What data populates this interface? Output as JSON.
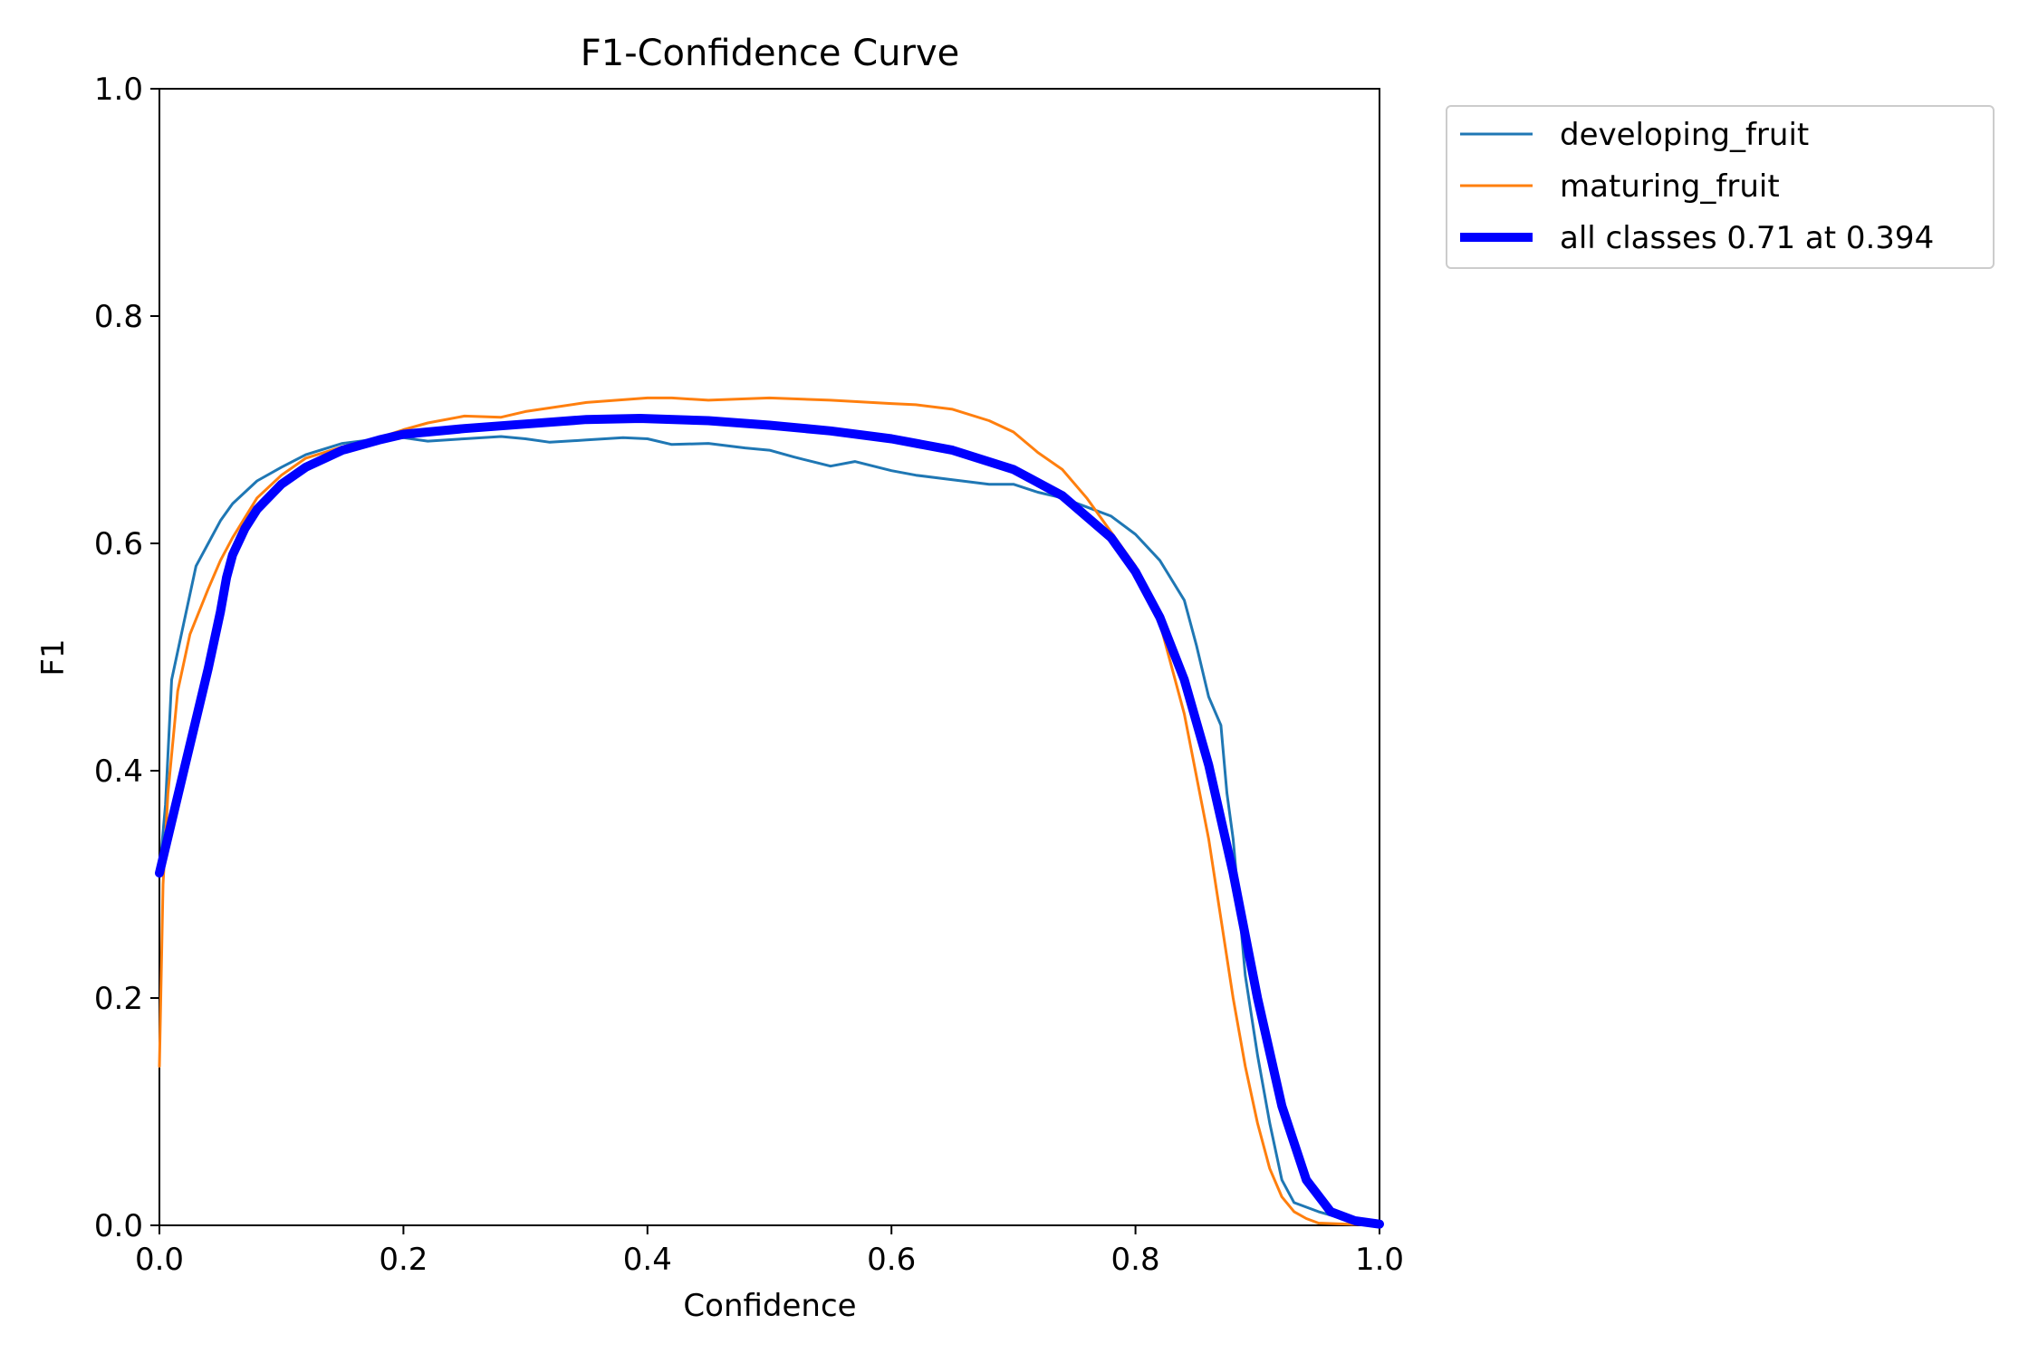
{
  "chart_data": {
    "type": "line",
    "title": "F1-Confidence Curve",
    "xlabel": "Confidence",
    "ylabel": "F1",
    "xlim": [
      0.0,
      1.0
    ],
    "ylim": [
      0.0,
      1.0
    ],
    "xticks": [
      "0.0",
      "0.2",
      "0.4",
      "0.6",
      "0.8",
      "1.0"
    ],
    "yticks": [
      "0.0",
      "0.2",
      "0.4",
      "0.6",
      "0.8",
      "1.0"
    ],
    "grid": false,
    "legend_position": "outside-top-right",
    "series": [
      {
        "name": "developing_fruit",
        "color": "#1f77b4",
        "style": "thin",
        "x": [
          0.0,
          0.005,
          0.01,
          0.02,
          0.03,
          0.04,
          0.05,
          0.06,
          0.08,
          0.1,
          0.12,
          0.15,
          0.18,
          0.2,
          0.22,
          0.25,
          0.28,
          0.3,
          0.32,
          0.35,
          0.38,
          0.4,
          0.42,
          0.45,
          0.48,
          0.5,
          0.52,
          0.55,
          0.57,
          0.6,
          0.62,
          0.65,
          0.68,
          0.7,
          0.72,
          0.74,
          0.76,
          0.78,
          0.8,
          0.82,
          0.84,
          0.85,
          0.86,
          0.87,
          0.875,
          0.88,
          0.885,
          0.89,
          0.9,
          0.91,
          0.92,
          0.93,
          0.95,
          0.97,
          1.0
        ],
        "y": [
          0.31,
          0.37,
          0.48,
          0.53,
          0.58,
          0.6,
          0.62,
          0.635,
          0.655,
          0.667,
          0.678,
          0.688,
          0.692,
          0.693,
          0.69,
          0.692,
          0.694,
          0.692,
          0.689,
          0.691,
          0.693,
          0.692,
          0.687,
          0.688,
          0.684,
          0.682,
          0.676,
          0.668,
          0.672,
          0.664,
          0.66,
          0.656,
          0.652,
          0.652,
          0.645,
          0.64,
          0.632,
          0.624,
          0.608,
          0.585,
          0.55,
          0.51,
          0.465,
          0.44,
          0.38,
          0.34,
          0.28,
          0.22,
          0.15,
          0.09,
          0.04,
          0.02,
          0.012,
          0.006,
          0.0
        ]
      },
      {
        "name": "maturing_fruit",
        "color": "#ff7f0e",
        "style": "thin",
        "x": [
          0.0,
          0.003,
          0.007,
          0.015,
          0.025,
          0.04,
          0.05,
          0.06,
          0.08,
          0.1,
          0.12,
          0.15,
          0.18,
          0.2,
          0.22,
          0.25,
          0.28,
          0.3,
          0.35,
          0.4,
          0.42,
          0.45,
          0.5,
          0.55,
          0.6,
          0.62,
          0.65,
          0.68,
          0.7,
          0.72,
          0.74,
          0.76,
          0.78,
          0.8,
          0.82,
          0.84,
          0.86,
          0.87,
          0.88,
          0.89,
          0.9,
          0.91,
          0.92,
          0.93,
          0.94,
          0.95,
          1.0
        ],
        "y": [
          0.14,
          0.3,
          0.38,
          0.47,
          0.52,
          0.56,
          0.585,
          0.605,
          0.64,
          0.66,
          0.675,
          0.685,
          0.693,
          0.7,
          0.706,
          0.712,
          0.711,
          0.716,
          0.724,
          0.728,
          0.728,
          0.726,
          0.728,
          0.726,
          0.723,
          0.722,
          0.718,
          0.708,
          0.698,
          0.68,
          0.665,
          0.64,
          0.61,
          0.58,
          0.53,
          0.45,
          0.34,
          0.27,
          0.2,
          0.14,
          0.09,
          0.05,
          0.025,
          0.012,
          0.006,
          0.002,
          0.0
        ]
      },
      {
        "name": "all classes 0.71 at 0.394",
        "color": "#0000ff",
        "style": "thick",
        "x": [
          0.0,
          0.02,
          0.04,
          0.05,
          0.055,
          0.06,
          0.07,
          0.08,
          0.1,
          0.12,
          0.15,
          0.18,
          0.2,
          0.25,
          0.3,
          0.35,
          0.394,
          0.45,
          0.5,
          0.55,
          0.6,
          0.65,
          0.7,
          0.74,
          0.78,
          0.8,
          0.82,
          0.84,
          0.86,
          0.88,
          0.9,
          0.92,
          0.94,
          0.96,
          0.98,
          1.0
        ],
        "y": [
          0.31,
          0.4,
          0.49,
          0.54,
          0.57,
          0.59,
          0.613,
          0.63,
          0.652,
          0.667,
          0.682,
          0.691,
          0.696,
          0.701,
          0.705,
          0.709,
          0.71,
          0.708,
          0.704,
          0.699,
          0.692,
          0.682,
          0.665,
          0.642,
          0.605,
          0.575,
          0.535,
          0.48,
          0.405,
          0.31,
          0.2,
          0.105,
          0.04,
          0.012,
          0.004,
          0.001
        ]
      }
    ]
  }
}
